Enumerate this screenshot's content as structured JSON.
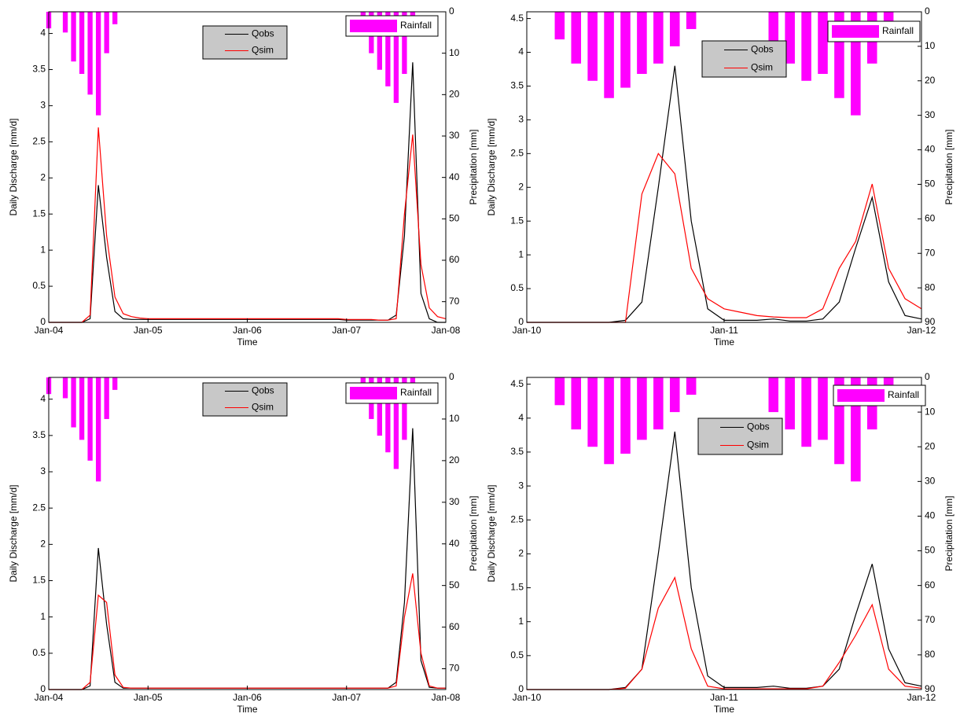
{
  "chart_data": [
    {
      "type": "line",
      "xlabel": "Time",
      "ylabel": "Daily Discharge [mm/d]",
      "y2label": "Precipitation [mm]",
      "x": [
        "2004-01",
        "2004-02",
        "2004-03",
        "2004-04",
        "2004-05",
        "2004-06",
        "2004-07",
        "2004-08",
        "2004-09",
        "2004-10",
        "2004-11",
        "2004-12",
        "2005-01",
        "2005-02",
        "2005-03",
        "2005-04",
        "2005-05",
        "2005-06",
        "2005-07",
        "2005-08",
        "2005-09",
        "2005-10",
        "2005-11",
        "2005-12",
        "2006-01",
        "2006-02",
        "2006-03",
        "2006-04",
        "2006-05",
        "2006-06",
        "2006-07",
        "2006-08",
        "2006-09",
        "2006-10",
        "2006-11",
        "2006-12",
        "2007-01",
        "2007-02",
        "2007-03",
        "2007-04",
        "2007-05",
        "2007-06",
        "2007-07",
        "2007-08",
        "2007-09",
        "2007-10",
        "2007-11",
        "2007-12",
        "2008-01"
      ],
      "series": [
        {
          "name": "Qobs",
          "color": "#000000",
          "values": [
            0,
            0,
            0,
            0,
            0,
            0.05,
            1.9,
            0.9,
            0.15,
            0.05,
            0.04,
            0.04,
            0.04,
            0.04,
            0.04,
            0.04,
            0.04,
            0.04,
            0.04,
            0.04,
            0.04,
            0.04,
            0.04,
            0.04,
            0.04,
            0.04,
            0.04,
            0.04,
            0.04,
            0.04,
            0.04,
            0.04,
            0.04,
            0.04,
            0.04,
            0.04,
            0.03,
            0.03,
            0.03,
            0.03,
            0.03,
            0.03,
            0.1,
            1.2,
            3.6,
            0.4,
            0.05,
            0,
            0
          ]
        },
        {
          "name": "Qsim",
          "color": "#ff0000",
          "values": [
            0,
            0,
            0,
            0,
            0,
            0.1,
            2.7,
            1.2,
            0.35,
            0.12,
            0.08,
            0.06,
            0.05,
            0.05,
            0.05,
            0.05,
            0.05,
            0.05,
            0.05,
            0.05,
            0.05,
            0.05,
            0.05,
            0.05,
            0.05,
            0.05,
            0.05,
            0.05,
            0.05,
            0.05,
            0.05,
            0.05,
            0.05,
            0.05,
            0.05,
            0.05,
            0.04,
            0.04,
            0.04,
            0.04,
            0.03,
            0.03,
            0.05,
            1.5,
            2.6,
            0.8,
            0.2,
            0.08,
            0.05
          ]
        },
        {
          "name": "Rainfall",
          "color": "#ff00ff",
          "type": "bar",
          "axis": "y2",
          "values": [
            4,
            0,
            5,
            12,
            15,
            20,
            25,
            10,
            3,
            0,
            0,
            0,
            0,
            0,
            0,
            0,
            0,
            0,
            0,
            0,
            0,
            0,
            0,
            0,
            0,
            0,
            0,
            0,
            0,
            0,
            0,
            0,
            0,
            0,
            0,
            0,
            0,
            0,
            4,
            10,
            14,
            18,
            22,
            15,
            5,
            0,
            0,
            0,
            0
          ]
        }
      ],
      "xlim": [
        "2004-01",
        "2008-01"
      ],
      "xticks": [
        {
          "value": "2004-01",
          "label": "Jan-04"
        },
        {
          "value": "2005-01",
          "label": "Jan-05"
        },
        {
          "value": "2006-01",
          "label": "Jan-06"
        },
        {
          "value": "2007-01",
          "label": "Jan-07"
        },
        {
          "value": "2008-01",
          "label": "Jan-08"
        }
      ],
      "ylim": [
        0,
        4.3
      ],
      "yticks": [
        0,
        0.5,
        1,
        1.5,
        2,
        2.5,
        3,
        3.5,
        4
      ],
      "y2lim": [
        75,
        0
      ],
      "y2ticks": [
        0,
        10,
        20,
        30,
        40,
        50,
        60,
        70
      ]
    },
    {
      "type": "line",
      "xlabel": "Time",
      "ylabel": "Daily Discharge [mm/d]",
      "y2label": "Precipitation [mm]",
      "x": [
        "2010-01",
        "2010-02",
        "2010-03",
        "2010-04",
        "2010-05",
        "2010-06",
        "2010-07",
        "2010-08",
        "2010-09",
        "2010-10",
        "2010-11",
        "2010-12",
        "2011-01",
        "2011-02",
        "2011-03",
        "2011-04",
        "2011-05",
        "2011-06",
        "2011-07",
        "2011-08",
        "2011-09",
        "2011-10",
        "2011-11",
        "2011-12",
        "2012-01"
      ],
      "series": [
        {
          "name": "Qobs",
          "color": "#000000",
          "values": [
            0,
            0,
            0,
            0,
            0,
            0,
            0.03,
            0.3,
            2.0,
            3.8,
            1.5,
            0.2,
            0.03,
            0.03,
            0.03,
            0.05,
            0.02,
            0.02,
            0.05,
            0.3,
            1.1,
            1.85,
            0.6,
            0.1,
            0.05
          ]
        },
        {
          "name": "Qsim",
          "color": "#ff0000",
          "values": [
            0,
            0,
            0,
            0,
            0,
            0,
            0,
            1.9,
            2.5,
            2.2,
            0.8,
            0.35,
            0.2,
            0.15,
            0.1,
            0.08,
            0.07,
            0.07,
            0.2,
            0.8,
            1.2,
            2.05,
            0.8,
            0.35,
            0.2
          ]
        },
        {
          "name": "Rainfall",
          "color": "#ff00ff",
          "type": "bar",
          "axis": "y2",
          "values": [
            0,
            0,
            8,
            15,
            20,
            25,
            22,
            18,
            15,
            10,
            5,
            0,
            0,
            0,
            0,
            10,
            15,
            20,
            18,
            25,
            30,
            15,
            8,
            0,
            0
          ]
        }
      ],
      "xlim": [
        "2010-01",
        "2012-01"
      ],
      "xticks": [
        {
          "value": "2010-01",
          "label": "Jan-10"
        },
        {
          "value": "2011-01",
          "label": "Jan-11"
        },
        {
          "value": "2012-01",
          "label": "Jan-12"
        }
      ],
      "ylim": [
        0,
        4.6
      ],
      "yticks": [
        0,
        0.5,
        1,
        1.5,
        2,
        2.5,
        3,
        3.5,
        4,
        4.5
      ],
      "y2lim": [
        90,
        0
      ],
      "y2ticks": [
        0,
        10,
        20,
        30,
        40,
        50,
        60,
        70,
        80,
        90
      ]
    },
    {
      "type": "line",
      "xlabel": "Time",
      "ylabel": "Daily Discharge [mm/d]",
      "y2label": "Precipitation [mm]",
      "x": [
        "2004-01",
        "2004-02",
        "2004-03",
        "2004-04",
        "2004-05",
        "2004-06",
        "2004-07",
        "2004-08",
        "2004-09",
        "2004-10",
        "2004-11",
        "2004-12",
        "2005-01",
        "2005-02",
        "2005-03",
        "2005-04",
        "2005-05",
        "2005-06",
        "2005-07",
        "2005-08",
        "2005-09",
        "2005-10",
        "2005-11",
        "2005-12",
        "2006-01",
        "2006-02",
        "2006-03",
        "2006-04",
        "2006-05",
        "2006-06",
        "2006-07",
        "2006-08",
        "2006-09",
        "2006-10",
        "2006-11",
        "2006-12",
        "2007-01",
        "2007-02",
        "2007-03",
        "2007-04",
        "2007-05",
        "2007-06",
        "2007-07",
        "2007-08",
        "2007-09",
        "2007-10",
        "2007-11",
        "2007-12",
        "2008-01"
      ],
      "series": [
        {
          "name": "Qobs",
          "color": "#000000",
          "values": [
            0,
            0,
            0,
            0,
            0,
            0.05,
            1.95,
            0.9,
            0.1,
            0.02,
            0.02,
            0.02,
            0.02,
            0.02,
            0.02,
            0.02,
            0.02,
            0.02,
            0.02,
            0.02,
            0.02,
            0.02,
            0.02,
            0.02,
            0.02,
            0.02,
            0.02,
            0.02,
            0.02,
            0.02,
            0.02,
            0.02,
            0.02,
            0.02,
            0.02,
            0.02,
            0.02,
            0.02,
            0.02,
            0.02,
            0.02,
            0.02,
            0.1,
            1.2,
            3.6,
            0.4,
            0.03,
            0.02,
            0.02
          ]
        },
        {
          "name": "Qsim",
          "color": "#ff0000",
          "values": [
            0,
            0,
            0,
            0,
            0,
            0.1,
            1.3,
            1.2,
            0.2,
            0.03,
            0.02,
            0.02,
            0.02,
            0.02,
            0.02,
            0.02,
            0.02,
            0.02,
            0.02,
            0.02,
            0.02,
            0.02,
            0.02,
            0.02,
            0.02,
            0.02,
            0.02,
            0.02,
            0.02,
            0.02,
            0.02,
            0.02,
            0.02,
            0.02,
            0.02,
            0.02,
            0.02,
            0.02,
            0.02,
            0.02,
            0.02,
            0.02,
            0.05,
            1.0,
            1.6,
            0.5,
            0.05,
            0.02,
            0.02
          ]
        },
        {
          "name": "Rainfall",
          "color": "#ff00ff",
          "type": "bar",
          "axis": "y2",
          "values": [
            4,
            0,
            5,
            12,
            15,
            20,
            25,
            10,
            3,
            0,
            0,
            0,
            0,
            0,
            0,
            0,
            0,
            0,
            0,
            0,
            0,
            0,
            0,
            0,
            0,
            0,
            0,
            0,
            0,
            0,
            0,
            0,
            0,
            0,
            0,
            0,
            0,
            0,
            4,
            10,
            14,
            18,
            22,
            15,
            5,
            0,
            0,
            0,
            0
          ]
        }
      ],
      "xlim": [
        "2004-01",
        "2008-01"
      ],
      "xticks": [
        {
          "value": "2004-01",
          "label": "Jan-04"
        },
        {
          "value": "2005-01",
          "label": "Jan-05"
        },
        {
          "value": "2006-01",
          "label": "Jan-06"
        },
        {
          "value": "2007-01",
          "label": "Jan-07"
        },
        {
          "value": "2008-01",
          "label": "Jan-08"
        }
      ],
      "ylim": [
        0,
        4.3
      ],
      "yticks": [
        0,
        0.5,
        1,
        1.5,
        2,
        2.5,
        3,
        3.5,
        4
      ],
      "y2lim": [
        75,
        0
      ],
      "y2ticks": [
        0,
        10,
        20,
        30,
        40,
        50,
        60,
        70
      ]
    },
    {
      "type": "line",
      "xlabel": "Time",
      "ylabel": "Daily Discharge [mm/d]",
      "y2label": "Precipitation [mm]",
      "x": [
        "2010-01",
        "2010-02",
        "2010-03",
        "2010-04",
        "2010-05",
        "2010-06",
        "2010-07",
        "2010-08",
        "2010-09",
        "2010-10",
        "2010-11",
        "2010-12",
        "2011-01",
        "2011-02",
        "2011-03",
        "2011-04",
        "2011-05",
        "2011-06",
        "2011-07",
        "2011-08",
        "2011-09",
        "2011-10",
        "2011-11",
        "2011-12",
        "2012-01"
      ],
      "series": [
        {
          "name": "Qobs",
          "color": "#000000",
          "values": [
            0,
            0,
            0,
            0,
            0,
            0,
            0.03,
            0.3,
            2.0,
            3.8,
            1.5,
            0.2,
            0.03,
            0.03,
            0.03,
            0.05,
            0.02,
            0.02,
            0.05,
            0.3,
            1.1,
            1.85,
            0.6,
            0.1,
            0.05
          ]
        },
        {
          "name": "Qsim",
          "color": "#ff0000",
          "values": [
            0,
            0,
            0,
            0,
            0,
            0,
            0.02,
            0.3,
            1.2,
            1.65,
            0.6,
            0.05,
            0.01,
            0.01,
            0.01,
            0.01,
            0.01,
            0.01,
            0.05,
            0.4,
            0.8,
            1.25,
            0.3,
            0.05,
            0.02
          ]
        },
        {
          "name": "Rainfall",
          "color": "#ff00ff",
          "type": "bar",
          "axis": "y2",
          "values": [
            0,
            0,
            8,
            15,
            20,
            25,
            22,
            18,
            15,
            10,
            5,
            0,
            0,
            0,
            0,
            10,
            15,
            20,
            18,
            25,
            30,
            15,
            8,
            0,
            0
          ]
        }
      ],
      "xlim": [
        "2010-01",
        "2012-01"
      ],
      "xticks": [
        {
          "value": "2010-01",
          "label": "Jan-10"
        },
        {
          "value": "2011-01",
          "label": "Jan-11"
        },
        {
          "value": "2012-01",
          "label": "Jan-12"
        }
      ],
      "ylim": [
        0,
        4.6
      ],
      "yticks": [
        0,
        0.5,
        1,
        1.5,
        2,
        2.5,
        3,
        3.5,
        4,
        4.5
      ],
      "y2lim": [
        90,
        0
      ],
      "y2ticks": [
        0,
        10,
        20,
        30,
        40,
        50,
        60,
        70,
        80,
        90
      ]
    }
  ]
}
